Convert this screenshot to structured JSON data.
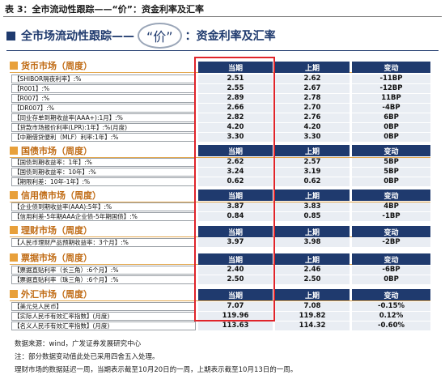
{
  "caption": "表 3：全市流动性跟踪——“价”：资金利率及汇率",
  "title": {
    "left": "全市场流动性跟踪——",
    "badge": "“价”",
    "right": "：资金利率及汇率"
  },
  "headers": {
    "current": "当期",
    "previous": "上期",
    "change": "变动"
  },
  "sections": [
    {
      "title": "货币市场（周度）",
      "rows": [
        {
          "label": "【SHIBOR隔夜利率】:%",
          "cur": "2.51",
          "prev": "2.62",
          "chg": "-11BP"
        },
        {
          "label": "【R001】:%",
          "cur": "2.55",
          "prev": "2.67",
          "chg": "-12BP"
        },
        {
          "label": "【R007】:%",
          "cur": "2.89",
          "prev": "2.78",
          "chg": "11BP"
        },
        {
          "label": "【DR007】:%",
          "cur": "2.66",
          "prev": "2.70",
          "chg": "-4BP"
        },
        {
          "label": "【同业存单到期收益率(AAA+):1月】:%",
          "cur": "2.82",
          "prev": "2.76",
          "chg": "6BP"
        },
        {
          "label": "【贷款市场报价利率(LPR):1年】:%(月度)",
          "cur": "4.20",
          "prev": "4.20",
          "chg": "0BP"
        },
        {
          "label": "【中期借贷便利（MLF）利率:1年】:%",
          "cur": "3.30",
          "prev": "3.30",
          "chg": "0BP"
        }
      ]
    },
    {
      "title": "国债市场（周度）",
      "rows": [
        {
          "label": "【国债到期收益率：1年】:%",
          "cur": "2.62",
          "prev": "2.57",
          "chg": "5BP"
        },
        {
          "label": "【国债到期收益率：10年】:%",
          "cur": "3.24",
          "prev": "3.19",
          "chg": "5BP"
        },
        {
          "label": "【期限利差：10年-1年】:%",
          "cur": "0.62",
          "prev": "0.62",
          "chg": "0BP"
        }
      ]
    },
    {
      "title": "信用债市场（周度）",
      "rows": [
        {
          "label": "【企业债到期收益率(AAA):5年】:%",
          "cur": "3.87",
          "prev": "3.83",
          "chg": "4BP"
        },
        {
          "label": "【信用利差-5年期AAA企业债-5年期国债】:%",
          "cur": "0.84",
          "prev": "0.85",
          "chg": "-1BP"
        }
      ]
    },
    {
      "title": "理财市场（周度）",
      "rows": [
        {
          "label": "【人民币理财产品预期收益率：3个月】:%",
          "cur": "3.97",
          "prev": "3.98",
          "chg": "-2BP"
        }
      ]
    },
    {
      "title": "票据市场（周度）",
      "rows": [
        {
          "label": "【票据直贴利率（长三角）:6个月】:%",
          "cur": "2.40",
          "prev": "2.46",
          "chg": "-6BP"
        },
        {
          "label": "【票据直贴利率（珠三角）:6个月】:%",
          "cur": "2.50",
          "prev": "2.50",
          "chg": "0BP"
        }
      ]
    },
    {
      "title": "外汇市场（周度）",
      "rows": [
        {
          "label": "【美元兑人民币】",
          "cur": "7.07",
          "prev": "7.08",
          "chg": "-0.15%"
        },
        {
          "label": "【实际人民币有效汇率指数】(月度)",
          "cur": "119.96",
          "prev": "119.82",
          "chg": "0.12%"
        },
        {
          "label": "【名义人民币有效汇率指数】(月度)",
          "cur": "113.63",
          "prev": "114.32",
          "chg": "-0.60%"
        }
      ]
    }
  ],
  "notes": [
    "数据来源：wind，广发证券发展研究中心",
    "注：部分数据变动值此处已采用四舍五入处理。",
    "理财市场的数据延迟一周，当期表示截至10月20日的一周，上期表示截至10月13日的一周。"
  ],
  "colors": {
    "navy": "#1f3a6e",
    "orange": "#e8a03a",
    "highlight": "#e0242a"
  }
}
